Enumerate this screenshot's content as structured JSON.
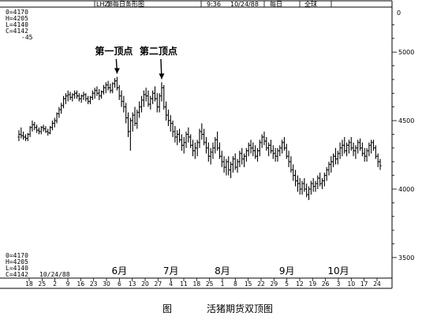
{
  "header": {
    "symbol": "LHZ8",
    "chart_kind": "每日条形图",
    "time": "9:36",
    "date": "10/24/88",
    "period": "每日",
    "scope": "全球"
  },
  "readout_top": [
    "0=4170",
    "H=4205",
    "L=4140",
    "C=4142",
    "-45"
  ],
  "readout_bottom": [
    "0=4170",
    "H=4205",
    "L=4140",
    "C=4142"
  ],
  "bottom_date": "10/24/88",
  "caption": {
    "figure": "图",
    "title": "活猪期货双顶图"
  },
  "chart_data": {
    "type": "bar",
    "subtype": "ohlc-daily",
    "title": "",
    "xlabel": "",
    "ylabel": "",
    "ylim": [
      3350,
      5300
    ],
    "y_ticks": [
      5000,
      4500,
      4000,
      3500
    ],
    "top_right_label": "0",
    "x_day_ticks": [
      "18",
      "25",
      "2",
      "9",
      "16",
      "23",
      "30",
      "6",
      "13",
      "20",
      "27",
      "4",
      "11",
      "18",
      "25",
      "1",
      "8",
      "15",
      "22",
      "29",
      "5",
      "12",
      "19",
      "26",
      "3",
      "10",
      "17",
      "24"
    ],
    "x_month_labels": [
      {
        "label": "6月",
        "tick_index": 7
      },
      {
        "label": "7月",
        "tick_index": 11
      },
      {
        "label": "8月",
        "tick_index": 15
      },
      {
        "label": "9月",
        "tick_index": 20
      },
      {
        "label": "10月",
        "tick_index": 24
      }
    ],
    "annotations": [
      {
        "text": "第一顶点",
        "bar_index": 44
      },
      {
        "text": "第二顶点",
        "bar_index": 64
      }
    ],
    "bars": [
      [
        4380,
        4430,
        4350,
        4400
      ],
      [
        4400,
        4450,
        4370,
        4390
      ],
      [
        4390,
        4420,
        4360,
        4380
      ],
      [
        4380,
        4400,
        4350,
        4370
      ],
      [
        4370,
        4410,
        4350,
        4400
      ],
      [
        4400,
        4460,
        4380,
        4450
      ],
      [
        4450,
        4500,
        4420,
        4470
      ],
      [
        4470,
        4490,
        4430,
        4450
      ],
      [
        4450,
        4470,
        4410,
        4430
      ],
      [
        4430,
        4450,
        4400,
        4420
      ],
      [
        4420,
        4460,
        4400,
        4450
      ],
      [
        4450,
        4470,
        4420,
        4440
      ],
      [
        4440,
        4460,
        4410,
        4420
      ],
      [
        4420,
        4440,
        4390,
        4410
      ],
      [
        4410,
        4460,
        4400,
        4450
      ],
      [
        4450,
        4500,
        4430,
        4480
      ],
      [
        4480,
        4520,
        4450,
        4500
      ],
      [
        4500,
        4560,
        4480,
        4550
      ],
      [
        4550,
        4600,
        4520,
        4580
      ],
      [
        4580,
        4630,
        4550,
        4610
      ],
      [
        4610,
        4680,
        4590,
        4660
      ],
      [
        4660,
        4700,
        4620,
        4680
      ],
      [
        4680,
        4720,
        4640,
        4690
      ],
      [
        4690,
        4710,
        4650,
        4670
      ],
      [
        4670,
        4700,
        4640,
        4690
      ],
      [
        4690,
        4720,
        4660,
        4700
      ],
      [
        4700,
        4720,
        4660,
        4680
      ],
      [
        4680,
        4700,
        4640,
        4660
      ],
      [
        4660,
        4690,
        4630,
        4680
      ],
      [
        4680,
        4710,
        4650,
        4690
      ],
      [
        4690,
        4700,
        4640,
        4660
      ],
      [
        4660,
        4680,
        4620,
        4640
      ],
      [
        4640,
        4680,
        4620,
        4670
      ],
      [
        4670,
        4720,
        4650,
        4700
      ],
      [
        4700,
        4740,
        4660,
        4720
      ],
      [
        4720,
        4750,
        4680,
        4700
      ],
      [
        4700,
        4730,
        4650,
        4680
      ],
      [
        4680,
        4720,
        4660,
        4710
      ],
      [
        4710,
        4760,
        4690,
        4740
      ],
      [
        4740,
        4780,
        4700,
        4760
      ],
      [
        4760,
        4790,
        4720,
        4740
      ],
      [
        4740,
        4770,
        4700,
        4720
      ],
      [
        4720,
        4780,
        4700,
        4770
      ],
      [
        4770,
        4810,
        4740,
        4790
      ],
      [
        4790,
        4820,
        4720,
        4740
      ],
      [
        4740,
        4760,
        4650,
        4680
      ],
      [
        4680,
        4720,
        4600,
        4640
      ],
      [
        4640,
        4680,
        4560,
        4600
      ],
      [
        4600,
        4630,
        4480,
        4520
      ],
      [
        4520,
        4560,
        4380,
        4420
      ],
      [
        4420,
        4520,
        4280,
        4500
      ],
      [
        4500,
        4560,
        4420,
        4540
      ],
      [
        4540,
        4600,
        4460,
        4480
      ],
      [
        4480,
        4580,
        4440,
        4560
      ],
      [
        4560,
        4640,
        4520,
        4600
      ],
      [
        4600,
        4680,
        4560,
        4650
      ],
      [
        4650,
        4720,
        4600,
        4690
      ],
      [
        4690,
        4740,
        4640,
        4680
      ],
      [
        4680,
        4720,
        4600,
        4620
      ],
      [
        4620,
        4680,
        4580,
        4660
      ],
      [
        4660,
        4720,
        4620,
        4700
      ],
      [
        4700,
        4750,
        4640,
        4660
      ],
      [
        4660,
        4700,
        4560,
        4600
      ],
      [
        4600,
        4700,
        4560,
        4680
      ],
      [
        4680,
        4780,
        4640,
        4740
      ],
      [
        4740,
        4760,
        4580,
        4600
      ],
      [
        4600,
        4640,
        4500,
        4540
      ],
      [
        4540,
        4580,
        4460,
        4500
      ],
      [
        4500,
        4540,
        4420,
        4480
      ],
      [
        4480,
        4500,
        4380,
        4420
      ],
      [
        4420,
        4460,
        4340,
        4380
      ],
      [
        4380,
        4430,
        4320,
        4400
      ],
      [
        4400,
        4440,
        4340,
        4360
      ],
      [
        4360,
        4400,
        4280,
        4320
      ],
      [
        4320,
        4380,
        4260,
        4340
      ],
      [
        4340,
        4420,
        4300,
        4400
      ],
      [
        4400,
        4450,
        4340,
        4380
      ],
      [
        4380,
        4400,
        4300,
        4320
      ],
      [
        4320,
        4360,
        4240,
        4280
      ],
      [
        4280,
        4340,
        4220,
        4300
      ],
      [
        4300,
        4360,
        4240,
        4340
      ],
      [
        4340,
        4440,
        4300,
        4420
      ],
      [
        4420,
        4480,
        4360,
        4400
      ],
      [
        4400,
        4440,
        4320,
        4340
      ],
      [
        4340,
        4380,
        4260,
        4300
      ],
      [
        4300,
        4340,
        4200,
        4240
      ],
      [
        4240,
        4300,
        4180,
        4270
      ],
      [
        4270,
        4340,
        4220,
        4300
      ],
      [
        4300,
        4380,
        4260,
        4360
      ],
      [
        4360,
        4420,
        4280,
        4300
      ],
      [
        4300,
        4340,
        4220,
        4240
      ],
      [
        4240,
        4280,
        4160,
        4200
      ],
      [
        4200,
        4240,
        4120,
        4160
      ],
      [
        4160,
        4220,
        4100,
        4200
      ],
      [
        4200,
        4240,
        4100,
        4140
      ],
      [
        4140,
        4200,
        4080,
        4180
      ],
      [
        4180,
        4240,
        4120,
        4220
      ],
      [
        4220,
        4260,
        4140,
        4160
      ],
      [
        4160,
        4220,
        4120,
        4200
      ],
      [
        4200,
        4280,
        4160,
        4260
      ],
      [
        4260,
        4300,
        4180,
        4220
      ],
      [
        4220,
        4260,
        4160,
        4240
      ],
      [
        4240,
        4300,
        4200,
        4280
      ],
      [
        4280,
        4340,
        4240,
        4320
      ],
      [
        4320,
        4360,
        4260,
        4300
      ],
      [
        4300,
        4340,
        4240,
        4280
      ],
      [
        4280,
        4320,
        4220,
        4240
      ],
      [
        4240,
        4300,
        4200,
        4280
      ],
      [
        4280,
        4360,
        4240,
        4340
      ],
      [
        4340,
        4400,
        4300,
        4380
      ],
      [
        4380,
        4420,
        4320,
        4350
      ],
      [
        4350,
        4380,
        4280,
        4300
      ],
      [
        4300,
        4340,
        4240,
        4320
      ],
      [
        4320,
        4360,
        4260,
        4280
      ],
      [
        4280,
        4320,
        4220,
        4260
      ],
      [
        4260,
        4300,
        4200,
        4240
      ],
      [
        4240,
        4300,
        4200,
        4280
      ],
      [
        4280,
        4320,
        4240,
        4300
      ],
      [
        4300,
        4360,
        4260,
        4340
      ],
      [
        4340,
        4380,
        4280,
        4300
      ],
      [
        4300,
        4330,
        4220,
        4240
      ],
      [
        4240,
        4280,
        4160,
        4200
      ],
      [
        4200,
        4240,
        4120,
        4140
      ],
      [
        4140,
        4180,
        4060,
        4100
      ],
      [
        4100,
        4140,
        4020,
        4060
      ],
      [
        4060,
        4100,
        3980,
        4040
      ],
      [
        4040,
        4080,
        3960,
        4000
      ],
      [
        4000,
        4060,
        3960,
        4040
      ],
      [
        4040,
        4080,
        3980,
        4000
      ],
      [
        4000,
        4040,
        3940,
        3960
      ],
      [
        3960,
        4020,
        3920,
        4000
      ],
      [
        4000,
        4060,
        3960,
        4040
      ],
      [
        4040,
        4080,
        3980,
        4020
      ],
      [
        4020,
        4060,
        3980,
        4040
      ],
      [
        4040,
        4100,
        4000,
        4080
      ],
      [
        4080,
        4120,
        4020,
        4040
      ],
      [
        4040,
        4080,
        4000,
        4060
      ],
      [
        4060,
        4120,
        4020,
        4100
      ],
      [
        4100,
        4160,
        4060,
        4140
      ],
      [
        4140,
        4200,
        4100,
        4180
      ],
      [
        4180,
        4240,
        4120,
        4200
      ],
      [
        4200,
        4260,
        4160,
        4240
      ],
      [
        4240,
        4300,
        4180,
        4220
      ],
      [
        4220,
        4280,
        4180,
        4260
      ],
      [
        4260,
        4340,
        4220,
        4300
      ],
      [
        4300,
        4360,
        4240,
        4320
      ],
      [
        4320,
        4380,
        4260,
        4280
      ],
      [
        4280,
        4340,
        4240,
        4320
      ],
      [
        4320,
        4360,
        4260,
        4340
      ],
      [
        4340,
        4380,
        4280,
        4300
      ],
      [
        4300,
        4340,
        4240,
        4280
      ],
      [
        4280,
        4320,
        4220,
        4300
      ],
      [
        4300,
        4360,
        4260,
        4340
      ],
      [
        4340,
        4370,
        4280,
        4300
      ],
      [
        4300,
        4340,
        4240,
        4260
      ],
      [
        4260,
        4300,
        4200,
        4240
      ],
      [
        4240,
        4300,
        4200,
        4280
      ],
      [
        4280,
        4340,
        4240,
        4320
      ],
      [
        4320,
        4360,
        4260,
        4340
      ],
      [
        4340,
        4360,
        4280,
        4300
      ],
      [
        4300,
        4320,
        4220,
        4240
      ],
      [
        4240,
        4260,
        4160,
        4200
      ],
      [
        4200,
        4220,
        4140,
        4170
      ]
    ]
  }
}
